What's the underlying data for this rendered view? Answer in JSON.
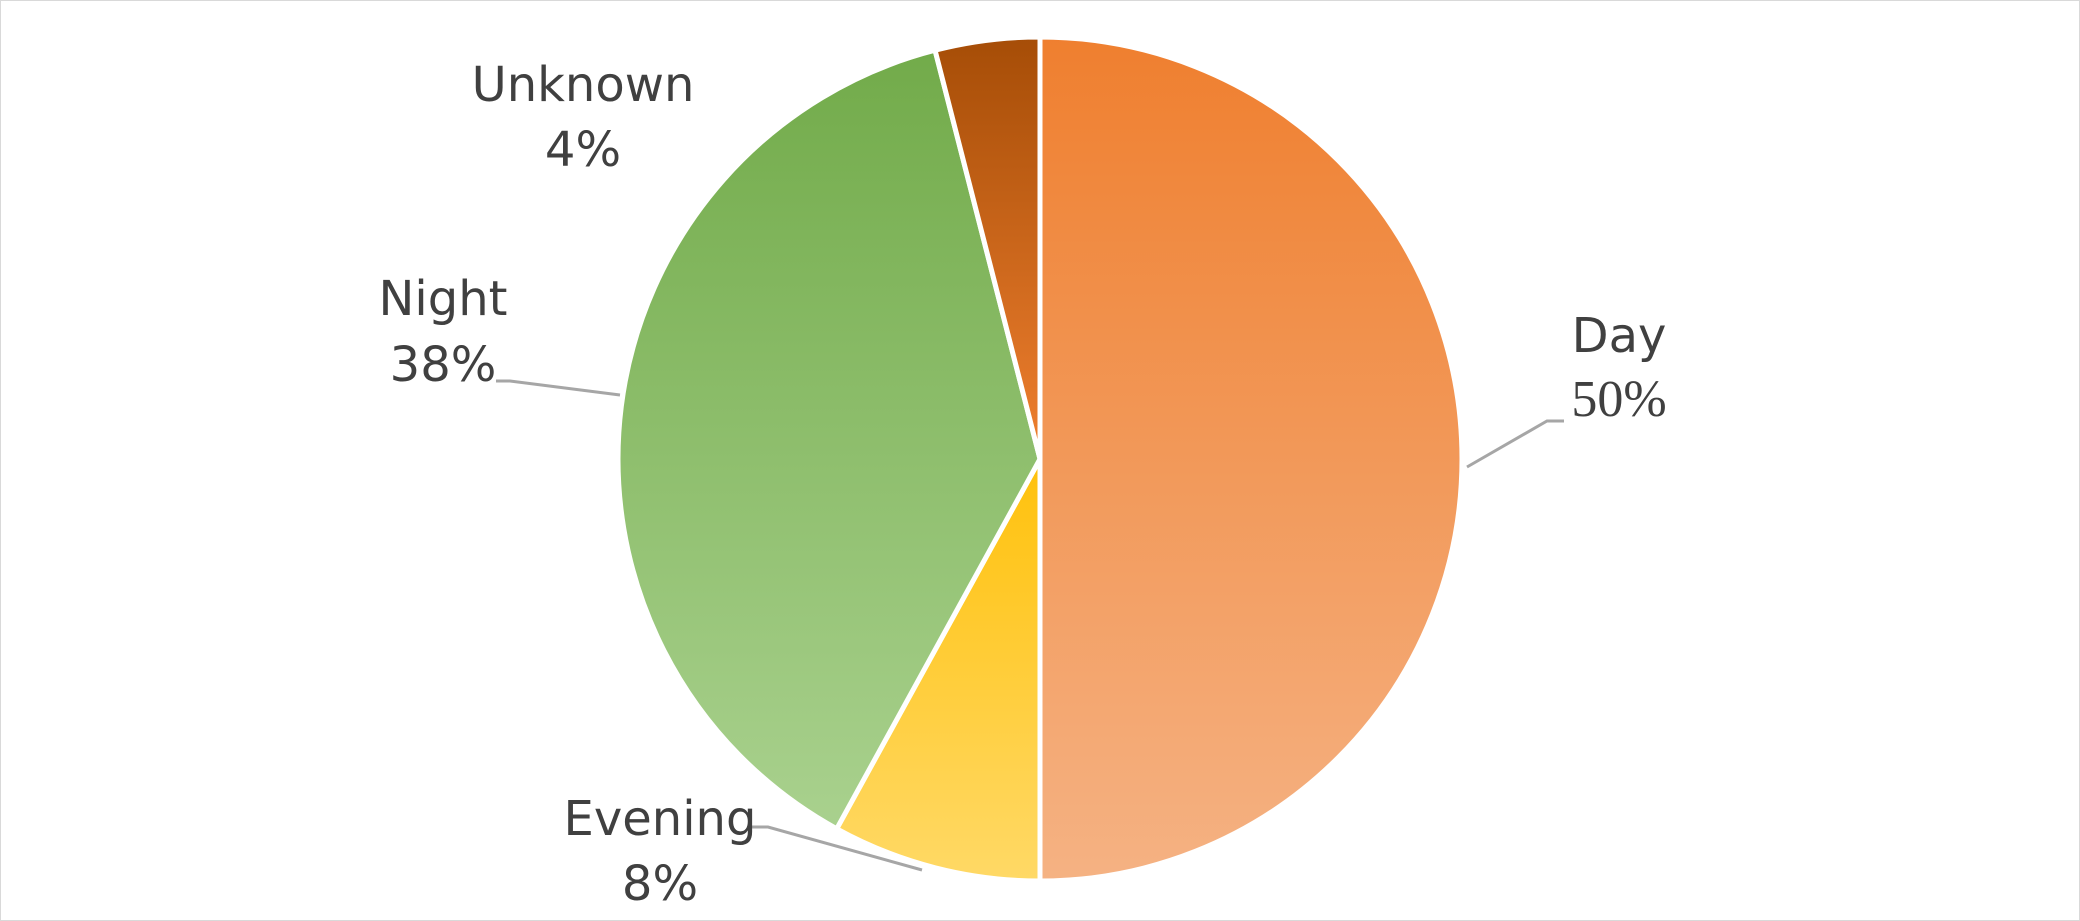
{
  "chart_data": {
    "type": "pie",
    "title": "",
    "categories": [
      "Day",
      "Evening",
      "Night",
      "Unknown"
    ],
    "values": [
      50,
      8,
      38,
      4
    ],
    "value_labels": [
      "50%",
      "8%",
      "38%",
      "4%"
    ],
    "colors": {
      "Day": [
        "#ef7f2f",
        "#f5b283"
      ],
      "Evening": [
        "#ffc10c",
        "#ffd966"
      ],
      "Night": [
        "#72ab4a",
        "#a9d18e"
      ],
      "Unknown": [
        "#a64d07",
        "#ef7f2f"
      ]
    },
    "legend": "none",
    "data_labels": "outside-with-leader-lines"
  }
}
